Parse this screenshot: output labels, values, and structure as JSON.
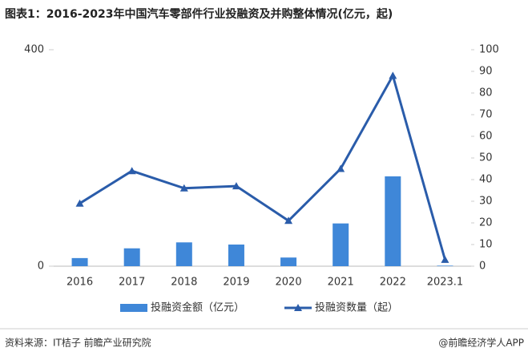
{
  "chart_data": {
    "type": "combo",
    "title": "图表1：2016-2023年中国汽车零部件行业投融资及并购整体情况(亿元，起)",
    "categories": [
      "2016",
      "2017",
      "2018",
      "2019",
      "2020",
      "2021",
      "2022",
      "2023.1"
    ],
    "series": [
      {
        "name": "投融资金额（亿元）",
        "type": "bar",
        "color": "#3f87d8",
        "values": [
          15,
          33,
          44,
          40,
          16,
          79,
          166,
          1
        ]
      },
      {
        "name": "投融资数量（起）",
        "type": "line",
        "axis": "y2",
        "color": "#2a5caa",
        "values": [
          29,
          44,
          36,
          37,
          21,
          45,
          88,
          3
        ]
      }
    ],
    "ylim": [
      0,
      400
    ],
    "yticks": [
      0,
      400
    ],
    "y2lim": [
      0,
      100
    ],
    "y2ticks": [
      0,
      10,
      20,
      30,
      40,
      50,
      60,
      70,
      80,
      90,
      100
    ],
    "legend": "bottom"
  },
  "footer": {
    "source": "资料来源：IT桔子 前瞻产业研究院",
    "credit": "@前瞻经济学人APP"
  }
}
